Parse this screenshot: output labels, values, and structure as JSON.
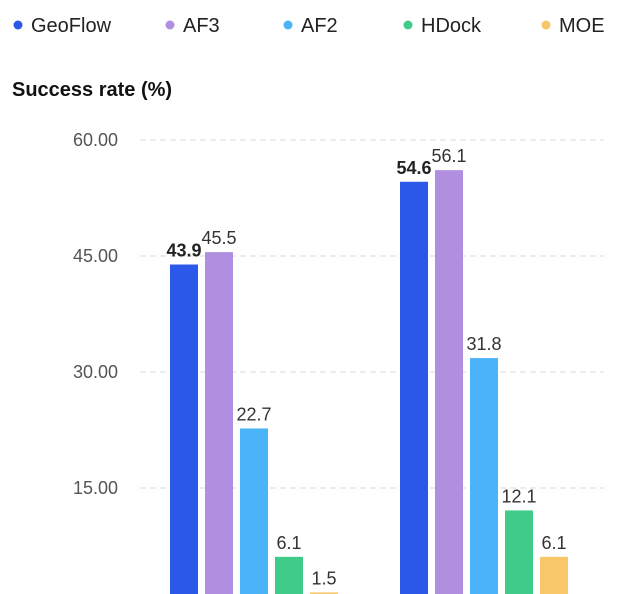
{
  "chart_data": {
    "type": "bar",
    "ylabel": "Success rate (%)",
    "ylim": [
      0,
      60
    ],
    "y_ticks": [
      {
        "value": 15,
        "label": "15.00"
      },
      {
        "value": 30,
        "label": "30.00"
      },
      {
        "value": 45,
        "label": "45.00"
      },
      {
        "value": 60,
        "label": "60.00"
      }
    ],
    "grid": true,
    "legend_position": "top",
    "categories": [
      "",
      ""
    ],
    "series": [
      {
        "name": "GeoFlow",
        "color": "#2b58e8",
        "values": [
          43.9,
          54.6
        ],
        "labels": [
          "43.9",
          "54.6"
        ],
        "bold_labels": true
      },
      {
        "name": "AF3",
        "color": "#b08ee0",
        "values": [
          45.5,
          56.1
        ],
        "labels": [
          "45.5",
          "56.1"
        ],
        "bold_labels": false
      },
      {
        "name": "AF2",
        "color": "#4bb3f7",
        "values": [
          22.7,
          31.8
        ],
        "labels": [
          "22.7",
          "31.8"
        ],
        "bold_labels": false
      },
      {
        "name": "HDock",
        "color": "#3fcb8a",
        "values": [
          6.1,
          12.1
        ],
        "labels": [
          "6.1",
          "12.1"
        ],
        "bold_labels": false
      },
      {
        "name": "MOE",
        "color": "#f7c76a",
        "values": [
          1.5,
          6.1
        ],
        "labels": [
          "1.5",
          "6.1"
        ],
        "bold_labels": false
      }
    ]
  }
}
